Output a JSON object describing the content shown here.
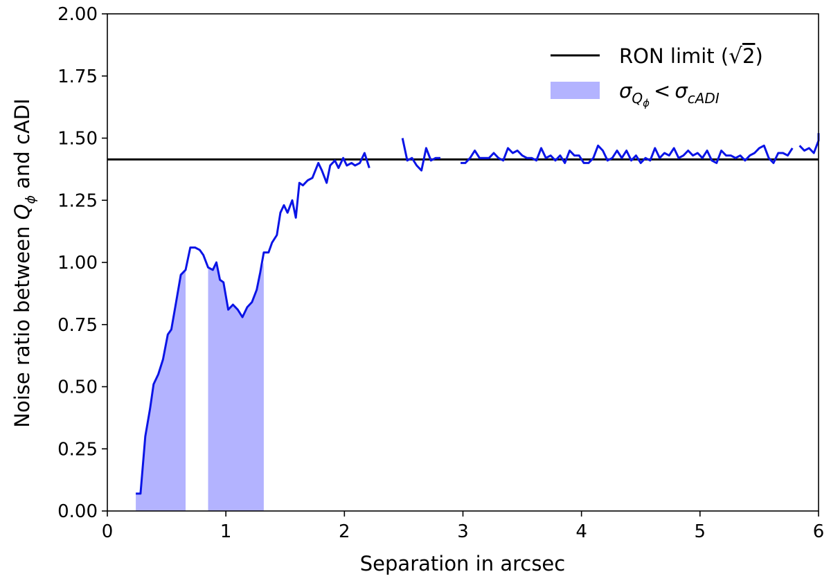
{
  "chart_data": {
    "type": "line",
    "xlabel": "Separation in arcsec",
    "ylabel": "Noise ratio between Q_ϕ and cADI",
    "ylabel_parts": {
      "before": "Noise ratio between ",
      "symbol": "Q",
      "subscript": "ϕ",
      "after": " and cADI"
    },
    "xlim": [
      0,
      6
    ],
    "ylim": [
      0,
      2
    ],
    "xticks": [
      0,
      1,
      2,
      3,
      4,
      5,
      6
    ],
    "xtick_labels": [
      "0",
      "1",
      "2",
      "3",
      "4",
      "5",
      "6"
    ],
    "yticks": [
      0,
      0.25,
      0.5,
      0.75,
      1.0,
      1.25,
      1.5,
      1.75,
      2.0
    ],
    "ytick_labels": [
      "0.00",
      "0.25",
      "0.50",
      "0.75",
      "1.00",
      "1.25",
      "1.50",
      "1.75",
      "2.00"
    ],
    "grid": false,
    "legend_position": "top-right",
    "legend": [
      {
        "label": "RON limit (√2)",
        "label_parts": {
          "before": "RON limit (",
          "sqrt": "2",
          "after": ")"
        },
        "kind": "line",
        "color": "#000000"
      },
      {
        "label": "σ_Qϕ < σ_cADI",
        "label_parts": {
          "sigma1": "σ",
          "sub1": "Q",
          "subsub1": "ϕ",
          "op": "<",
          "sigma2": "σ",
          "sub2": "cADI"
        },
        "kind": "fill",
        "color": "#b3b3ff"
      }
    ],
    "reference_line": {
      "name": "RON limit (√2)",
      "y": 1.4142,
      "color": "#000000"
    },
    "series": [
      {
        "kind": "line",
        "color": "#0a14e6",
        "segments": [
          [
            [
              0.24,
              0.07
            ],
            [
              0.28,
              0.07
            ],
            [
              0.32,
              0.3
            ],
            [
              0.36,
              0.41
            ],
            [
              0.39,
              0.51
            ],
            [
              0.43,
              0.55
            ],
            [
              0.47,
              0.61
            ],
            [
              0.51,
              0.71
            ],
            [
              0.54,
              0.73
            ],
            [
              0.58,
              0.84
            ],
            [
              0.62,
              0.95
            ],
            [
              0.66,
              0.97
            ],
            [
              0.7,
              1.06
            ],
            [
              0.74,
              1.06
            ],
            [
              0.78,
              1.05
            ],
            [
              0.81,
              1.03
            ],
            [
              0.85,
              0.98
            ],
            [
              0.89,
              0.97
            ],
            [
              0.92,
              1.0
            ],
            [
              0.95,
              0.93
            ],
            [
              0.98,
              0.92
            ],
            [
              1.02,
              0.81
            ],
            [
              1.06,
              0.83
            ],
            [
              1.1,
              0.81
            ],
            [
              1.14,
              0.78
            ],
            [
              1.18,
              0.82
            ],
            [
              1.22,
              0.84
            ],
            [
              1.26,
              0.89
            ],
            [
              1.29,
              0.96
            ],
            [
              1.32,
              1.04
            ],
            [
              1.36,
              1.04
            ],
            [
              1.39,
              1.08
            ],
            [
              1.43,
              1.11
            ],
            [
              1.46,
              1.2
            ],
            [
              1.49,
              1.23
            ],
            [
              1.52,
              1.2
            ],
            [
              1.56,
              1.25
            ],
            [
              1.59,
              1.18
            ],
            [
              1.62,
              1.32
            ],
            [
              1.65,
              1.31
            ],
            [
              1.69,
              1.33
            ],
            [
              1.73,
              1.34
            ],
            [
              1.78,
              1.4
            ],
            [
              1.81,
              1.37
            ],
            [
              1.85,
              1.32
            ],
            [
              1.88,
              1.39
            ],
            [
              1.92,
              1.41
            ],
            [
              1.95,
              1.38
            ],
            [
              1.99,
              1.42
            ],
            [
              2.02,
              1.39
            ],
            [
              2.06,
              1.4
            ],
            [
              2.09,
              1.39
            ],
            [
              2.13,
              1.4
            ],
            [
              2.17,
              1.44
            ],
            [
              2.21,
              1.38
            ]
          ],
          [
            [
              2.49,
              1.5
            ],
            [
              2.53,
              1.41
            ],
            [
              2.57,
              1.42
            ],
            [
              2.61,
              1.39
            ],
            [
              2.65,
              1.37
            ],
            [
              2.69,
              1.46
            ],
            [
              2.73,
              1.41
            ],
            [
              2.77,
              1.42
            ],
            [
              2.81,
              1.42
            ]
          ],
          [
            [
              2.98,
              1.4
            ],
            [
              3.02,
              1.4
            ],
            [
              3.06,
              1.42
            ],
            [
              3.1,
              1.45
            ],
            [
              3.14,
              1.42
            ],
            [
              3.18,
              1.42
            ],
            [
              3.22,
              1.42
            ],
            [
              3.26,
              1.44
            ],
            [
              3.3,
              1.42
            ],
            [
              3.34,
              1.41
            ],
            [
              3.38,
              1.46
            ],
            [
              3.42,
              1.44
            ],
            [
              3.46,
              1.45
            ],
            [
              3.5,
              1.43
            ],
            [
              3.54,
              1.42
            ],
            [
              3.58,
              1.42
            ],
            [
              3.62,
              1.41
            ],
            [
              3.66,
              1.46
            ],
            [
              3.7,
              1.42
            ],
            [
              3.74,
              1.43
            ],
            [
              3.78,
              1.41
            ],
            [
              3.82,
              1.43
            ],
            [
              3.86,
              1.4
            ],
            [
              3.9,
              1.45
            ],
            [
              3.94,
              1.43
            ],
            [
              3.98,
              1.43
            ],
            [
              4.02,
              1.4
            ],
            [
              4.06,
              1.4
            ],
            [
              4.1,
              1.42
            ],
            [
              4.14,
              1.47
            ],
            [
              4.18,
              1.45
            ],
            [
              4.22,
              1.41
            ],
            [
              4.26,
              1.42
            ],
            [
              4.3,
              1.45
            ],
            [
              4.34,
              1.42
            ],
            [
              4.38,
              1.45
            ],
            [
              4.42,
              1.41
            ],
            [
              4.46,
              1.43
            ],
            [
              4.5,
              1.4
            ],
            [
              4.54,
              1.42
            ],
            [
              4.58,
              1.41
            ],
            [
              4.62,
              1.46
            ],
            [
              4.66,
              1.42
            ],
            [
              4.7,
              1.44
            ],
            [
              4.74,
              1.43
            ],
            [
              4.78,
              1.46
            ],
            [
              4.82,
              1.42
            ],
            [
              4.86,
              1.43
            ],
            [
              4.9,
              1.45
            ],
            [
              4.94,
              1.43
            ],
            [
              4.98,
              1.44
            ],
            [
              5.02,
              1.42
            ],
            [
              5.06,
              1.45
            ],
            [
              5.1,
              1.41
            ],
            [
              5.14,
              1.4
            ],
            [
              5.18,
              1.45
            ],
            [
              5.22,
              1.43
            ],
            [
              5.26,
              1.43
            ],
            [
              5.3,
              1.42
            ],
            [
              5.34,
              1.43
            ],
            [
              5.38,
              1.41
            ],
            [
              5.42,
              1.43
            ],
            [
              5.46,
              1.44
            ],
            [
              5.5,
              1.46
            ],
            [
              5.54,
              1.47
            ],
            [
              5.58,
              1.42
            ],
            [
              5.62,
              1.4
            ],
            [
              5.66,
              1.44
            ],
            [
              5.7,
              1.44
            ],
            [
              5.74,
              1.43
            ],
            [
              5.78,
              1.46
            ]
          ],
          [
            [
              5.84,
              1.47
            ],
            [
              5.88,
              1.45
            ],
            [
              5.92,
              1.46
            ],
            [
              5.96,
              1.44
            ],
            [
              6.0,
              1.49
            ],
            [
              6.04,
              1.51
            ],
            [
              6.08,
              1.51
            ],
            [
              6.12,
              1.52
            ]
          ]
        ]
      }
    ],
    "shaded_regions": [
      {
        "label": "σ_Qϕ < σ_cADI",
        "color": "#b3b3ff",
        "points": [
          [
            0.24,
            0.07
          ],
          [
            0.28,
            0.07
          ],
          [
            0.32,
            0.3
          ],
          [
            0.36,
            0.41
          ],
          [
            0.39,
            0.51
          ],
          [
            0.43,
            0.55
          ],
          [
            0.47,
            0.61
          ],
          [
            0.51,
            0.71
          ],
          [
            0.54,
            0.73
          ],
          [
            0.58,
            0.84
          ],
          [
            0.62,
            0.95
          ],
          [
            0.66,
            0.97
          ]
        ]
      },
      {
        "label": "σ_Qϕ < σ_cADI",
        "color": "#b3b3ff",
        "points": [
          [
            0.85,
            0.98
          ],
          [
            0.89,
            0.97
          ],
          [
            0.92,
            1.0
          ],
          [
            0.95,
            0.93
          ],
          [
            0.98,
            0.92
          ],
          [
            1.02,
            0.81
          ],
          [
            1.06,
            0.83
          ],
          [
            1.1,
            0.81
          ],
          [
            1.14,
            0.78
          ],
          [
            1.18,
            0.82
          ],
          [
            1.22,
            0.84
          ],
          [
            1.26,
            0.89
          ],
          [
            1.29,
            0.96
          ],
          [
            1.32,
            1.0
          ]
        ]
      }
    ]
  }
}
